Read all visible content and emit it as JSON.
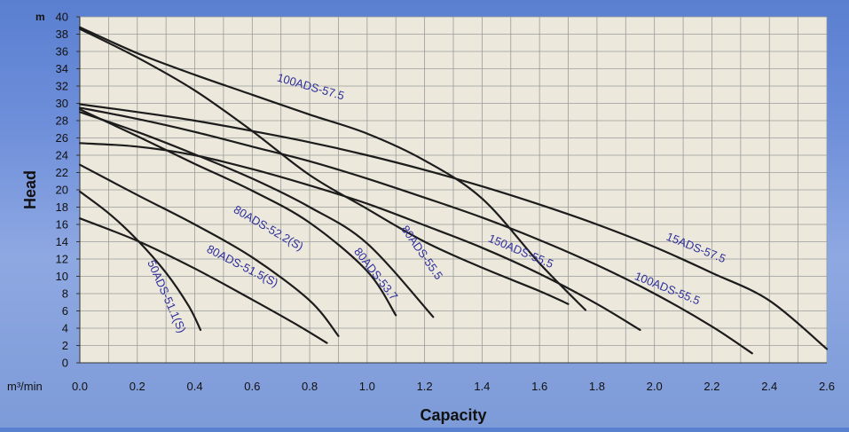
{
  "chart_data": {
    "type": "line",
    "title": "",
    "xlabel": "Capacity",
    "ylabel": "Head",
    "x_unit": "m³/min",
    "y_unit": "m",
    "xlim": [
      0.0,
      2.6
    ],
    "ylim": [
      0,
      40
    ],
    "x_ticks": [
      "0.0",
      "0.2",
      "0.4",
      "0.6",
      "0.8",
      "1.0",
      "1.2",
      "1.4",
      "1.6",
      "1.8",
      "2.0",
      "2.2",
      "2.4",
      "2.6"
    ],
    "y_ticks": [
      "0",
      "2",
      "4",
      "6",
      "8",
      "10",
      "12",
      "14",
      "16",
      "18",
      "20",
      "22",
      "24",
      "26",
      "28",
      "30",
      "32",
      "34",
      "36",
      "38",
      "40"
    ],
    "grid": true,
    "series": [
      {
        "name": "50ADS-51.1(S)",
        "x": [
          0.0,
          0.1,
          0.2,
          0.3,
          0.38,
          0.42
        ],
        "y": [
          19.8,
          17.3,
          14.2,
          10.4,
          6.5,
          3.8
        ]
      },
      {
        "name": "80ADS-51.5(S)",
        "x": [
          0.0,
          0.2,
          0.4,
          0.6,
          0.75,
          0.86
        ],
        "y": [
          16.7,
          14.1,
          10.9,
          7.3,
          4.5,
          2.3
        ]
      },
      {
        "name": "80ADS-52.2(S)",
        "x": [
          0.0,
          0.2,
          0.4,
          0.6,
          0.8,
          0.9
        ],
        "y": [
          22.9,
          19.4,
          16.0,
          12.2,
          7.2,
          3.1
        ]
      },
      {
        "name": "80ADS-53.7",
        "x": [
          0.0,
          0.2,
          0.4,
          0.6,
          0.8,
          1.0,
          1.1
        ],
        "y": [
          29.3,
          26.2,
          23.0,
          19.9,
          16.2,
          10.6,
          5.5
        ]
      },
      {
        "name": "80ADS-55.5",
        "x": [
          0.0,
          0.2,
          0.4,
          0.6,
          0.8,
          1.0,
          1.23
        ],
        "y": [
          29.0,
          26.7,
          24.1,
          21.3,
          18.0,
          13.8,
          5.3
        ]
      },
      {
        "name": "100ADS-57.5",
        "x": [
          0.0,
          0.2,
          0.4,
          0.6,
          0.8,
          1.0,
          1.2,
          1.4,
          1.6,
          1.76
        ],
        "y": [
          38.8,
          35.8,
          33.3,
          31.0,
          28.7,
          26.5,
          23.4,
          19.0,
          11.5,
          6.1
        ]
      },
      {
        "name": "",
        "x": [
          0.0,
          0.2,
          0.4,
          0.6,
          0.8,
          1.0,
          1.2,
          1.4,
          1.6,
          1.7
        ],
        "y": [
          38.6,
          35.3,
          31.5,
          26.8,
          21.7,
          17.8,
          14.0,
          11.0,
          8.3,
          6.8
        ]
      },
      {
        "name": "150ADS-55.5",
        "x": [
          0.0,
          0.2,
          0.4,
          0.6,
          0.8,
          1.0,
          1.2,
          1.4,
          1.6,
          1.8,
          1.95
        ],
        "y": [
          25.4,
          25.0,
          24.0,
          22.4,
          20.5,
          18.4,
          15.9,
          13.3,
          10.3,
          6.8,
          3.8
        ]
      },
      {
        "name": "100ADS-55.5",
        "x": [
          0.0,
          0.2,
          0.4,
          0.6,
          0.8,
          1.0,
          1.2,
          1.4,
          1.6,
          1.8,
          2.0,
          2.2,
          2.34
        ],
        "y": [
          29.5,
          28.2,
          26.7,
          25.0,
          23.3,
          21.3,
          19.1,
          16.8,
          14.2,
          11.3,
          8.0,
          4.2,
          1.1
        ]
      },
      {
        "name": "15ADS-57.5",
        "x": [
          0.0,
          0.2,
          0.4,
          0.6,
          0.8,
          1.0,
          1.2,
          1.4,
          1.6,
          1.8,
          2.0,
          2.2,
          2.4,
          2.6
        ],
        "y": [
          29.9,
          29.0,
          28.0,
          26.8,
          25.5,
          24.0,
          22.3,
          20.4,
          18.3,
          16.0,
          13.4,
          10.4,
          7.2,
          1.6
        ]
      }
    ]
  }
}
